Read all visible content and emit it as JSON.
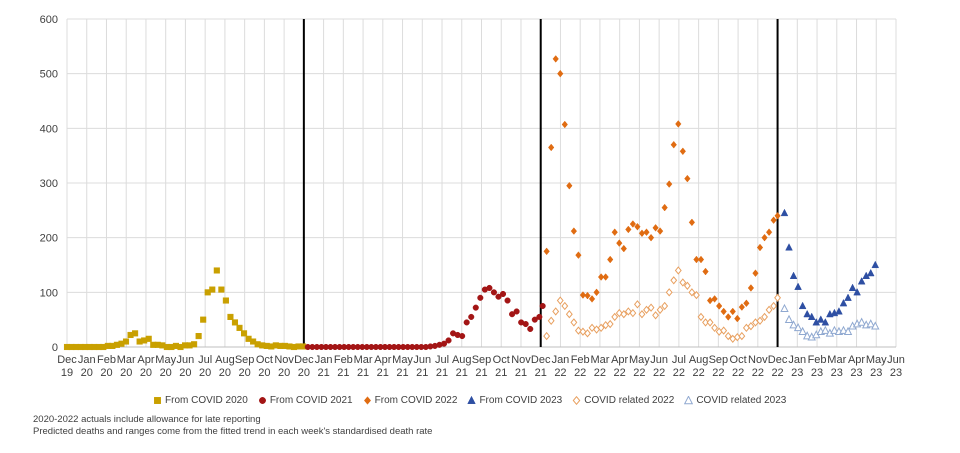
{
  "chart_data": {
    "type": "scatter",
    "ylim": [
      0,
      600
    ],
    "yticks": [
      "0",
      "100",
      "200",
      "300",
      "400",
      "500",
      "600"
    ],
    "xlim": [
      0,
      42
    ],
    "xticks": [
      {
        "m": "Dec",
        "y": "19"
      },
      {
        "m": "Jan",
        "y": "20"
      },
      {
        "m": "Feb",
        "y": "20"
      },
      {
        "m": "Mar",
        "y": "20"
      },
      {
        "m": "Apr",
        "y": "20"
      },
      {
        "m": "May",
        "y": "20"
      },
      {
        "m": "Jun",
        "y": "20"
      },
      {
        "m": "Jul",
        "y": "20"
      },
      {
        "m": "Aug",
        "y": "20"
      },
      {
        "m": "Sep",
        "y": "20"
      },
      {
        "m": "Oct",
        "y": "20"
      },
      {
        "m": "Nov",
        "y": "20"
      },
      {
        "m": "Dec",
        "y": "20"
      },
      {
        "m": "Jan",
        "y": "21"
      },
      {
        "m": "Feb",
        "y": "21"
      },
      {
        "m": "Mar",
        "y": "21"
      },
      {
        "m": "Apr",
        "y": "21"
      },
      {
        "m": "May",
        "y": "21"
      },
      {
        "m": "Jun",
        "y": "21"
      },
      {
        "m": "Jul",
        "y": "21"
      },
      {
        "m": "Aug",
        "y": "21"
      },
      {
        "m": "Sep",
        "y": "21"
      },
      {
        "m": "Oct",
        "y": "21"
      },
      {
        "m": "Nov",
        "y": "21"
      },
      {
        "m": "Dec",
        "y": "21"
      },
      {
        "m": "Jan",
        "y": "22"
      },
      {
        "m": "Feb",
        "y": "22"
      },
      {
        "m": "Mar",
        "y": "22"
      },
      {
        "m": "Apr",
        "y": "22"
      },
      {
        "m": "May",
        "y": "22"
      },
      {
        "m": "Jun",
        "y": "22"
      },
      {
        "m": "Jul",
        "y": "22"
      },
      {
        "m": "Aug",
        "y": "22"
      },
      {
        "m": "Sep",
        "y": "22"
      },
      {
        "m": "Oct",
        "y": "22"
      },
      {
        "m": "Nov",
        "y": "22"
      },
      {
        "m": "Dec",
        "y": "22"
      },
      {
        "m": "Jan",
        "y": "23"
      },
      {
        "m": "Feb",
        "y": "23"
      },
      {
        "m": "Mar",
        "y": "23"
      },
      {
        "m": "Apr",
        "y": "23"
      },
      {
        "m": "May",
        "y": "23"
      },
      {
        "m": "Jun",
        "y": "23"
      }
    ],
    "grid": true,
    "year_dividers_at_month_index": [
      12,
      24,
      36
    ],
    "legend_position": "bottom",
    "series": [
      {
        "name": "From COVID 2020",
        "marker": "square",
        "filled": true,
        "color": "#C9A000",
        "points": [
          [
            0,
            0
          ],
          [
            0.23,
            0
          ],
          [
            0.46,
            0
          ],
          [
            0.69,
            0
          ],
          [
            0.92,
            0
          ],
          [
            1.15,
            0
          ],
          [
            1.38,
            0
          ],
          [
            1.61,
            0
          ],
          [
            1.84,
            0
          ],
          [
            2.07,
            2
          ],
          [
            2.3,
            2
          ],
          [
            2.53,
            4
          ],
          [
            2.76,
            6
          ],
          [
            2.99,
            10
          ],
          [
            3.22,
            22
          ],
          [
            3.45,
            25
          ],
          [
            3.68,
            10
          ],
          [
            3.91,
            12
          ],
          [
            4.14,
            15
          ],
          [
            4.37,
            4
          ],
          [
            4.6,
            4
          ],
          [
            4.83,
            3
          ],
          [
            5.06,
            0
          ],
          [
            5.29,
            0
          ],
          [
            5.52,
            2
          ],
          [
            5.75,
            0
          ],
          [
            5.98,
            3
          ],
          [
            6.21,
            3
          ],
          [
            6.44,
            5
          ],
          [
            6.67,
            20
          ],
          [
            6.9,
            50
          ],
          [
            7.13,
            100
          ],
          [
            7.36,
            105
          ],
          [
            7.59,
            140
          ],
          [
            7.82,
            105
          ],
          [
            8.05,
            85
          ],
          [
            8.28,
            55
          ],
          [
            8.51,
            45
          ],
          [
            8.74,
            35
          ],
          [
            8.97,
            25
          ],
          [
            9.2,
            15
          ],
          [
            9.43,
            10
          ],
          [
            9.66,
            5
          ],
          [
            9.89,
            3
          ],
          [
            10.12,
            2
          ],
          [
            10.35,
            1
          ],
          [
            10.58,
            3
          ],
          [
            10.81,
            2
          ],
          [
            11.04,
            2
          ],
          [
            11.27,
            1
          ],
          [
            11.5,
            0
          ],
          [
            11.73,
            1
          ],
          [
            11.96,
            1
          ]
        ]
      },
      {
        "name": "From COVID 2021",
        "marker": "circle",
        "filled": true,
        "color": "#A31515",
        "points": [
          [
            12.2,
            0
          ],
          [
            12.43,
            0
          ],
          [
            12.66,
            0
          ],
          [
            12.89,
            0
          ],
          [
            13.12,
            0
          ],
          [
            13.35,
            0
          ],
          [
            13.58,
            0
          ],
          [
            13.81,
            0
          ],
          [
            14.04,
            0
          ],
          [
            14.27,
            0
          ],
          [
            14.5,
            0
          ],
          [
            14.73,
            0
          ],
          [
            14.96,
            0
          ],
          [
            15.19,
            0
          ],
          [
            15.42,
            0
          ],
          [
            15.65,
            0
          ],
          [
            15.88,
            0
          ],
          [
            16.11,
            0
          ],
          [
            16.34,
            0
          ],
          [
            16.57,
            0
          ],
          [
            16.8,
            0
          ],
          [
            17.03,
            0
          ],
          [
            17.26,
            0
          ],
          [
            17.49,
            0
          ],
          [
            17.72,
            0
          ],
          [
            17.95,
            0
          ],
          [
            18.18,
            0
          ],
          [
            18.41,
            1
          ],
          [
            18.64,
            2
          ],
          [
            18.87,
            4
          ],
          [
            19.1,
            6
          ],
          [
            19.33,
            12
          ],
          [
            19.56,
            25
          ],
          [
            19.79,
            22
          ],
          [
            20.02,
            20
          ],
          [
            20.25,
            45
          ],
          [
            20.48,
            55
          ],
          [
            20.71,
            72
          ],
          [
            20.94,
            90
          ],
          [
            21.17,
            105
          ],
          [
            21.4,
            108
          ],
          [
            21.63,
            100
          ],
          [
            21.86,
            92
          ],
          [
            22.09,
            97
          ],
          [
            22.32,
            85
          ],
          [
            22.55,
            60
          ],
          [
            22.78,
            65
          ],
          [
            23.01,
            45
          ],
          [
            23.24,
            42
          ],
          [
            23.47,
            33
          ],
          [
            23.7,
            50
          ],
          [
            23.93,
            55
          ],
          [
            24.1,
            75
          ]
        ]
      },
      {
        "name": "From COVID 2022",
        "marker": "diamond",
        "filled": true,
        "color": "#E06C12",
        "points": [
          [
            24.3,
            175
          ],
          [
            24.53,
            365
          ],
          [
            24.76,
            527
          ],
          [
            24.99,
            500
          ],
          [
            25.22,
            407
          ],
          [
            25.45,
            295
          ],
          [
            25.68,
            212
          ],
          [
            25.91,
            168
          ],
          [
            26.14,
            95
          ],
          [
            26.37,
            94
          ],
          [
            26.6,
            88
          ],
          [
            26.83,
            100
          ],
          [
            27.06,
            128
          ],
          [
            27.29,
            128
          ],
          [
            27.52,
            160
          ],
          [
            27.75,
            210
          ],
          [
            27.98,
            190
          ],
          [
            28.21,
            180
          ],
          [
            28.44,
            215
          ],
          [
            28.67,
            225
          ],
          [
            28.9,
            220
          ],
          [
            29.13,
            208
          ],
          [
            29.36,
            210
          ],
          [
            29.59,
            200
          ],
          [
            29.82,
            218
          ],
          [
            30.05,
            212
          ],
          [
            30.28,
            255
          ],
          [
            30.51,
            298
          ],
          [
            30.74,
            370
          ],
          [
            30.97,
            408
          ],
          [
            31.2,
            358
          ],
          [
            31.43,
            308
          ],
          [
            31.66,
            228
          ],
          [
            31.89,
            160
          ],
          [
            32.12,
            160
          ],
          [
            32.35,
            138
          ],
          [
            32.58,
            85
          ],
          [
            32.81,
            88
          ],
          [
            33.04,
            75
          ],
          [
            33.27,
            65
          ],
          [
            33.5,
            55
          ],
          [
            33.73,
            65
          ],
          [
            33.96,
            52
          ],
          [
            34.19,
            73
          ],
          [
            34.42,
            80
          ],
          [
            34.65,
            108
          ],
          [
            34.88,
            135
          ],
          [
            35.11,
            182
          ],
          [
            35.34,
            200
          ],
          [
            35.57,
            210
          ],
          [
            35.8,
            232
          ],
          [
            36.0,
            240
          ]
        ]
      },
      {
        "name": "From COVID 2023",
        "marker": "triangle",
        "filled": true,
        "color": "#2E4FA3",
        "points": [
          [
            36.35,
            245
          ],
          [
            36.58,
            182
          ],
          [
            36.81,
            130
          ],
          [
            37.04,
            110
          ],
          [
            37.27,
            75
          ],
          [
            37.5,
            60
          ],
          [
            37.73,
            55
          ],
          [
            37.96,
            45
          ],
          [
            38.19,
            50
          ],
          [
            38.42,
            45
          ],
          [
            38.65,
            60
          ],
          [
            38.88,
            62
          ],
          [
            39.11,
            65
          ],
          [
            39.34,
            80
          ],
          [
            39.57,
            90
          ],
          [
            39.8,
            108
          ],
          [
            40.03,
            100
          ],
          [
            40.26,
            120
          ],
          [
            40.49,
            130
          ],
          [
            40.72,
            135
          ],
          [
            40.95,
            150
          ]
        ]
      },
      {
        "name": "COVID related 2022",
        "marker": "diamond",
        "filled": false,
        "color": "#E8A060",
        "points": [
          [
            24.3,
            20
          ],
          [
            24.53,
            48
          ],
          [
            24.76,
            65
          ],
          [
            24.99,
            85
          ],
          [
            25.22,
            75
          ],
          [
            25.45,
            60
          ],
          [
            25.68,
            45
          ],
          [
            25.91,
            30
          ],
          [
            26.14,
            28
          ],
          [
            26.37,
            25
          ],
          [
            26.6,
            35
          ],
          [
            26.83,
            32
          ],
          [
            27.06,
            35
          ],
          [
            27.29,
            40
          ],
          [
            27.52,
            42
          ],
          [
            27.75,
            55
          ],
          [
            27.98,
            62
          ],
          [
            28.21,
            60
          ],
          [
            28.44,
            65
          ],
          [
            28.67,
            62
          ],
          [
            28.9,
            78
          ],
          [
            29.13,
            60
          ],
          [
            29.36,
            68
          ],
          [
            29.59,
            72
          ],
          [
            29.82,
            58
          ],
          [
            30.05,
            68
          ],
          [
            30.28,
            75
          ],
          [
            30.51,
            100
          ],
          [
            30.74,
            122
          ],
          [
            30.97,
            140
          ],
          [
            31.2,
            118
          ],
          [
            31.43,
            112
          ],
          [
            31.66,
            100
          ],
          [
            31.89,
            95
          ],
          [
            32.12,
            55
          ],
          [
            32.35,
            45
          ],
          [
            32.58,
            45
          ],
          [
            32.81,
            35
          ],
          [
            33.04,
            28
          ],
          [
            33.27,
            30
          ],
          [
            33.5,
            20
          ],
          [
            33.73,
            15
          ],
          [
            33.96,
            18
          ],
          [
            34.19,
            20
          ],
          [
            34.42,
            35
          ],
          [
            34.65,
            38
          ],
          [
            34.88,
            45
          ],
          [
            35.11,
            48
          ],
          [
            35.34,
            55
          ],
          [
            35.57,
            68
          ],
          [
            35.8,
            75
          ],
          [
            36.0,
            90
          ]
        ]
      },
      {
        "name": "COVID related 2023",
        "marker": "triangle",
        "filled": false,
        "color": "#8FA8D0",
        "points": [
          [
            36.35,
            70
          ],
          [
            36.58,
            50
          ],
          [
            36.81,
            40
          ],
          [
            37.04,
            35
          ],
          [
            37.27,
            28
          ],
          [
            37.5,
            20
          ],
          [
            37.73,
            18
          ],
          [
            37.96,
            22
          ],
          [
            38.19,
            28
          ],
          [
            38.42,
            30
          ],
          [
            38.65,
            25
          ],
          [
            38.88,
            30
          ],
          [
            39.11,
            28
          ],
          [
            39.34,
            30
          ],
          [
            39.57,
            28
          ],
          [
            39.8,
            38
          ],
          [
            40.03,
            42
          ],
          [
            40.26,
            45
          ],
          [
            40.49,
            40
          ],
          [
            40.72,
            42
          ],
          [
            40.95,
            38
          ]
        ]
      }
    ]
  },
  "notes": {
    "line1": "2020-2022  actuals include allowance for late reporting",
    "line2": "Predicted deaths and ranges come from the fitted trend in each week's standardised death rate"
  }
}
